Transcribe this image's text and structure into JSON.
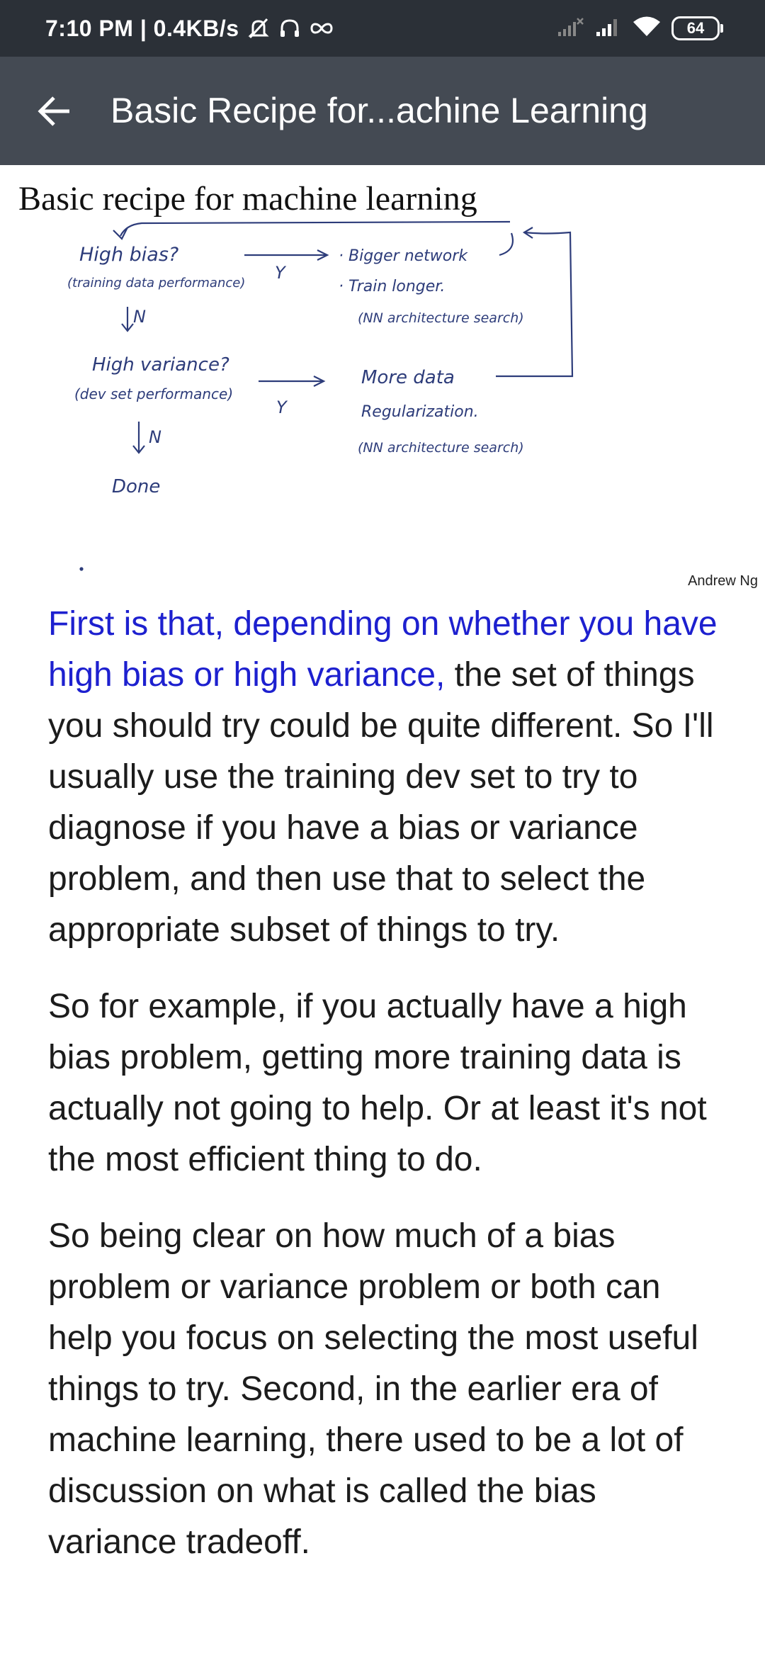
{
  "status_bar": {
    "time_speed": "7:10 PM | 0.4KB/s",
    "battery": "64",
    "icons": [
      "mute-alarm-icon",
      "headset-icon",
      "infinity-icon",
      "signal-x-icon",
      "signal-icon",
      "wifi-icon",
      "battery-icon"
    ]
  },
  "app_bar": {
    "back_icon": "back-arrow-icon",
    "title": "Basic Recipe for...achine Learning"
  },
  "slide": {
    "title": "Basic recipe for machine learning",
    "credit": "Andrew Ng",
    "notes": {
      "high_bias": "High bias?",
      "training_perf": "(training data performance)",
      "n1": "N",
      "y1": "Y",
      "bigger_network": "· Bigger network",
      "train_longer": "· Train longer.",
      "nn_search_1": "(NN architecture search)",
      "high_variance": "High variance?",
      "dev_perf": "(dev set performance)",
      "y2": "Y",
      "more_data": "More data",
      "regularization": "Regularization.",
      "nn_search_2": "(NN architecture search)",
      "n2": "N",
      "done": "Done"
    }
  },
  "transcript": {
    "p1_highlight": "First is that, depending on whether you have high bias or high variance,",
    "p1_rest": " the set of things you should try could be quite different. So I'll usually use the training dev set to try to diagnose if you have a bias or variance problem, and then use that to select the appropriate subset of things to try.",
    "p2": "So for example, if you actually have a high bias problem, getting more training data is actually not going to help. Or at least it's not the most efficient thing to do.",
    "p3": "So being clear on how much of a bias problem or variance problem or both can help you focus on selecting the most useful things to try. Second, in the earlier era of machine learning, there used to be a lot of discussion on what is called the bias variance tradeoff."
  },
  "colors": {
    "status_bar_bg": "#2b3037",
    "app_bar_bg": "#444a53",
    "highlight_text": "#1d20cf",
    "ink": "#2d3c7a"
  }
}
